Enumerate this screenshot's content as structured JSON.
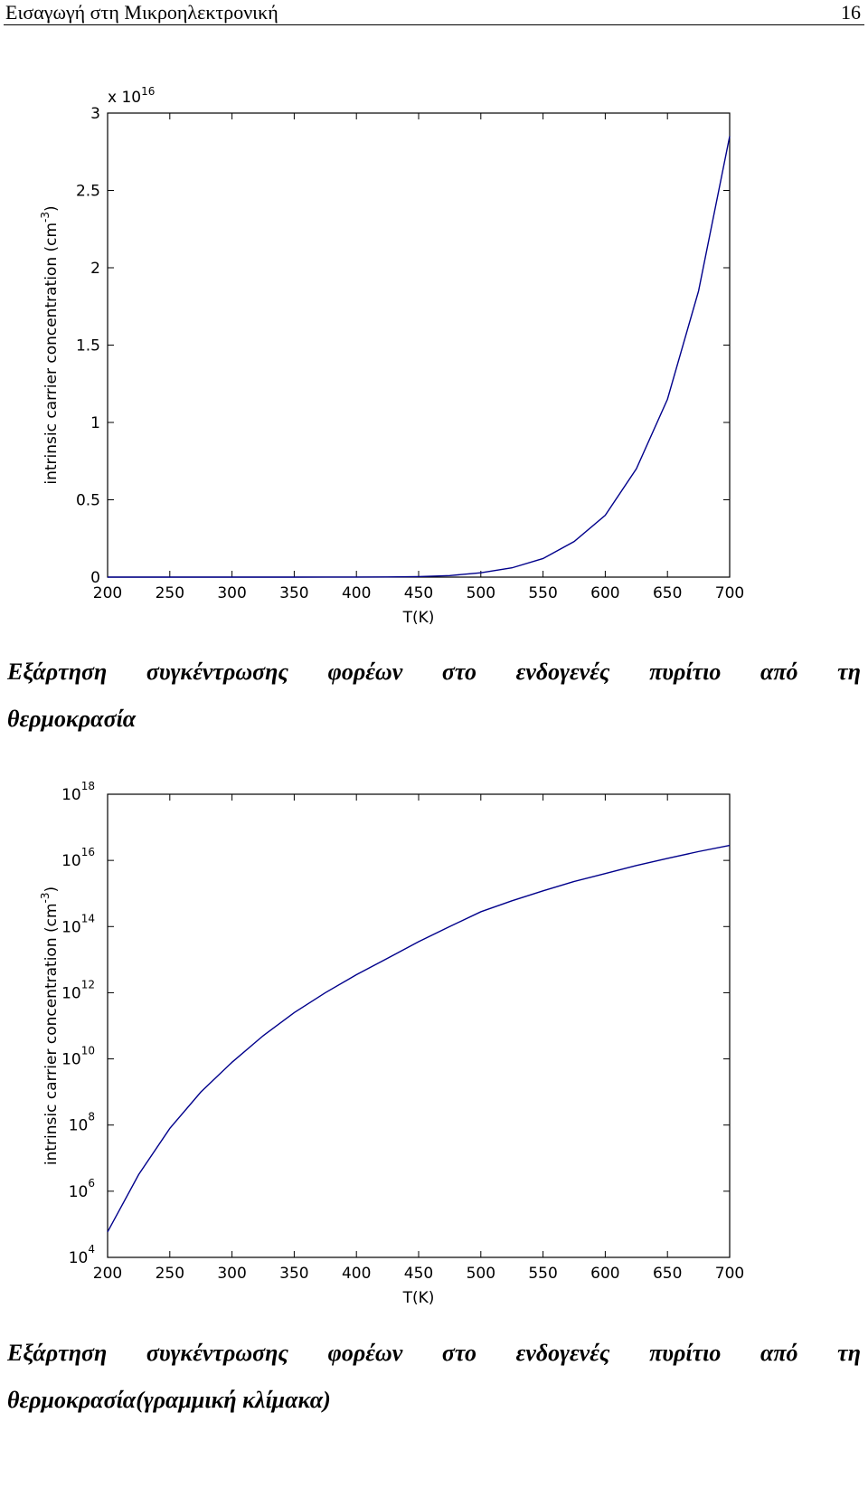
{
  "header": {
    "title": "Εισαγωγή στη Μικροηλεκτρονική",
    "page_number": "16"
  },
  "chart_data": [
    {
      "type": "line",
      "log_y": false,
      "color": "#00008b",
      "y_multiplier": [
        "x 10",
        "16"
      ],
      "xlabel": "T(K)",
      "ylabel": [
        "intrinsic carrier concentration (cm",
        "-3",
        ")"
      ],
      "x": [
        200,
        225,
        250,
        275,
        300,
        325,
        350,
        375,
        400,
        425,
        450,
        475,
        500,
        525,
        550,
        575,
        600,
        625,
        650,
        675,
        700
      ],
      "series": [
        {
          "values": [
            5.9e-12,
            3.2e-10,
            7.9e-09,
            1e-07,
            7.9e-07,
            5e-06,
            2.5e-05,
            0.0001,
            0.00035,
            0.0011,
            0.0035,
            0.01,
            0.028,
            0.06,
            0.12,
            0.23,
            0.4,
            0.7,
            1.15,
            1.85,
            2.85
          ]
        }
      ],
      "xlim": [
        200,
        700
      ],
      "xticks": [
        200,
        250,
        300,
        350,
        400,
        450,
        500,
        550,
        600,
        650,
        700
      ],
      "ylim": [
        0,
        3
      ],
      "yticks": [
        0,
        0.5,
        1,
        1.5,
        2,
        2.5,
        3
      ]
    },
    {
      "type": "line",
      "log_y": true,
      "color": "#00008b",
      "xlabel": "T(K)",
      "ylabel": [
        "intrinsic carrier concentration (cm",
        "-3",
        ")"
      ],
      "x": [
        200,
        225,
        250,
        275,
        300,
        325,
        350,
        375,
        400,
        425,
        450,
        475,
        500,
        525,
        550,
        575,
        600,
        625,
        650,
        675,
        700
      ],
      "series": [
        {
          "values": [
            59000.0,
            3200000.0,
            79000000.0,
            1000000000.0,
            7900000000.0,
            50000000000.0,
            250000000000.0,
            1000000000000.0,
            3500000000000.0,
            11000000000000.0,
            35000000000000.0,
            100000000000000.0,
            280000000000000.0,
            600000000000000.0,
            1200000000000000.0,
            2300000000000000.0,
            4000000000000000.0,
            7000000000000000.0,
            1.15e+16,
            1.85e+16,
            2.85e+16
          ]
        }
      ],
      "xlim": [
        200,
        700
      ],
      "xticks": [
        200,
        250,
        300,
        350,
        400,
        450,
        500,
        550,
        600,
        650,
        700
      ],
      "ylim": [
        10000.0,
        1e+18
      ],
      "yticks": [
        {
          "value": 10000.0,
          "label": "10",
          "exponent": "4"
        },
        {
          "value": 1000000.0,
          "label": "10",
          "exponent": "6"
        },
        {
          "value": 100000000.0,
          "label": "10",
          "exponent": "8"
        },
        {
          "value": 10000000000.0,
          "label": "10",
          "exponent": "10"
        },
        {
          "value": 1000000000000.0,
          "label": "10",
          "exponent": "12"
        },
        {
          "value": 100000000000000.0,
          "label": "10",
          "exponent": "14"
        },
        {
          "value": 1e+16,
          "label": "10",
          "exponent": "16"
        },
        {
          "value": 1e+18,
          "label": "10",
          "exponent": "18"
        }
      ]
    }
  ],
  "captions": [
    [
      "Εξάρτηση συγκέντρωσης φορέων στο ενδογενές πυρίτιο από τη",
      "θερμοκρασία"
    ],
    [
      "Εξάρτηση συγκέντρωσης φορέων στο ενδογενές πυρίτιο από τη",
      "θερμοκρασία(γραμμική κλίμακα)"
    ]
  ]
}
